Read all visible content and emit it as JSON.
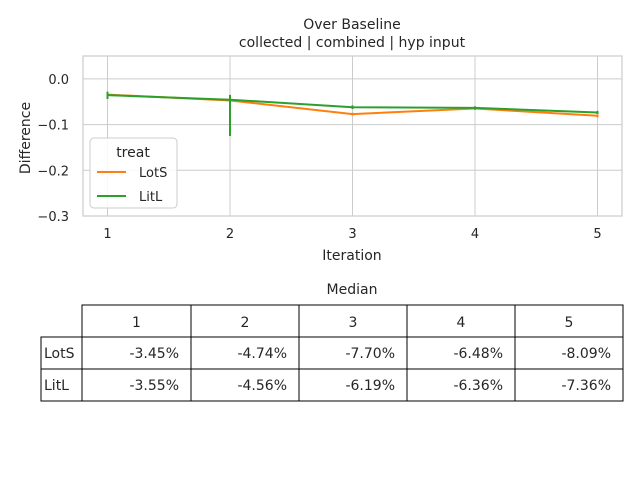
{
  "chart_data": [
    {
      "type": "line",
      "title": "Over Baseline",
      "subtitle": "collected | combined | hyp input",
      "xlabel": "Iteration",
      "ylabel": "Difference",
      "x": [
        1,
        2,
        3,
        4,
        5
      ],
      "x_ticks": [
        "1",
        "2",
        "3",
        "4",
        "5"
      ],
      "y_ticks": [
        "0.0",
        "−0.1",
        "−0.2",
        "−0.3"
      ],
      "xlim": [
        0.8,
        5.2
      ],
      "ylim": [
        -0.3,
        0.05
      ],
      "grid": true,
      "legend": {
        "title": "treat",
        "placement": "lower-left"
      },
      "series": [
        {
          "name": "LotS",
          "color": "#ff7f0e",
          "values": [
            -0.0345,
            -0.0474,
            -0.077,
            -0.0648,
            -0.0809
          ],
          "err_low": [
            -0.039,
            -0.05,
            -0.08,
            -0.068,
            -0.084
          ],
          "err_high": [
            -0.031,
            -0.044,
            -0.074,
            -0.062,
            -0.078
          ]
        },
        {
          "name": "LitL",
          "color": "#2ca02c",
          "values": [
            -0.0355,
            -0.0456,
            -0.0619,
            -0.0636,
            -0.0736
          ],
          "err_low": [
            -0.044,
            -0.125,
            -0.066,
            -0.067,
            -0.077
          ],
          "err_high": [
            -0.028,
            -0.035,
            -0.058,
            -0.06,
            -0.07
          ]
        }
      ]
    },
    {
      "type": "table",
      "title": "Median",
      "columns": [
        "1",
        "2",
        "3",
        "4",
        "5"
      ],
      "rows": [
        {
          "label": "LotS",
          "cells": [
            "-3.45%",
            "-4.74%",
            "-7.70%",
            "-6.48%",
            "-8.09%"
          ]
        },
        {
          "label": "LitL",
          "cells": [
            "-3.55%",
            "-4.56%",
            "-6.19%",
            "-6.36%",
            "-7.36%"
          ]
        }
      ]
    }
  ],
  "colors": {
    "grid": "#cccccc",
    "table_border": "#000000"
  }
}
